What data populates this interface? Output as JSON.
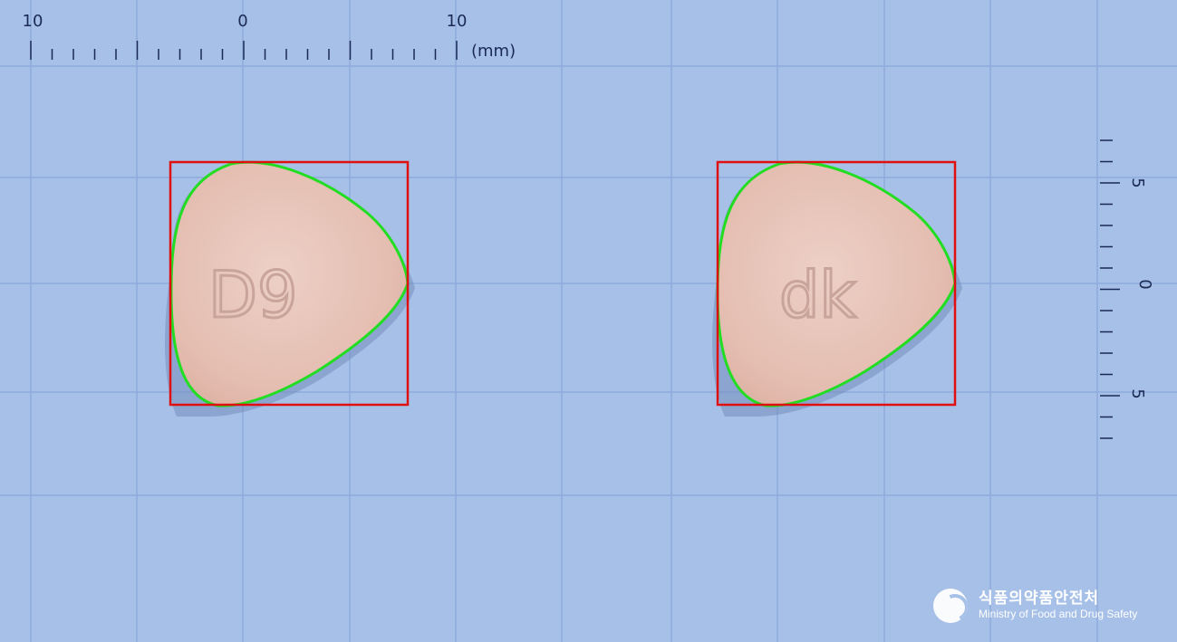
{
  "ruler_top": {
    "labels": [
      "10",
      "0",
      "10"
    ],
    "unit": "(mm)"
  },
  "ruler_right": {
    "labels": [
      "5",
      "0",
      "5"
    ]
  },
  "pills": [
    {
      "imprint": "D9",
      "side": "front"
    },
    {
      "imprint": "dk",
      "side": "back"
    }
  ],
  "watermark": {
    "korean": "식품의약품안전처",
    "english": "Ministry of Food and Drug Safety"
  },
  "colors": {
    "background": "#a7c0e8",
    "grid": "#8eaadb",
    "pill": "#e7c3b6",
    "outline": "#22dd22",
    "bbox": "#e01010"
  }
}
